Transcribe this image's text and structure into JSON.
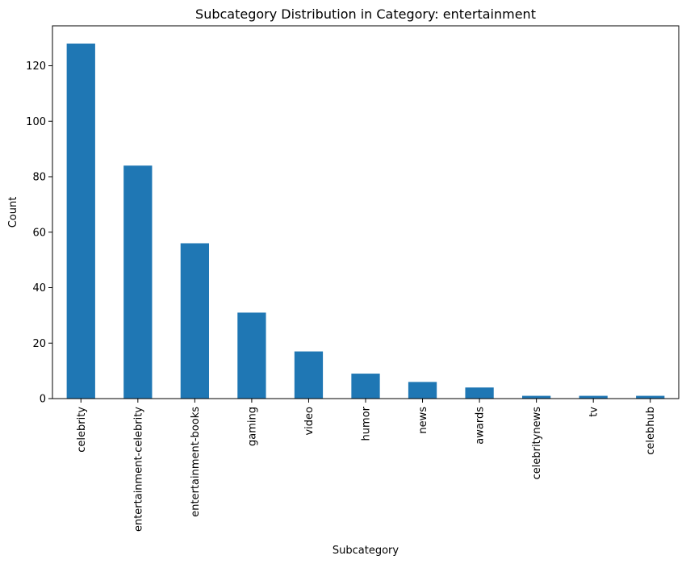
{
  "chart_data": {
    "type": "bar",
    "title": "Subcategory Distribution in Category: entertainment",
    "xlabel": "Subcategory",
    "ylabel": "Count",
    "categories": [
      "celebrity",
      "entertainment-celebrity",
      "entertainment-books",
      "gaming",
      "video",
      "humor",
      "news",
      "awards",
      "celebritynews",
      "tv",
      "celebhub"
    ],
    "values": [
      128,
      84,
      56,
      31,
      17,
      9,
      6,
      4,
      1,
      1,
      1
    ],
    "ylim": [
      0,
      134.4
    ],
    "yticks": [
      0,
      20,
      40,
      60,
      80,
      100,
      120
    ],
    "grid": false,
    "bar_color": "#1f77b4"
  }
}
